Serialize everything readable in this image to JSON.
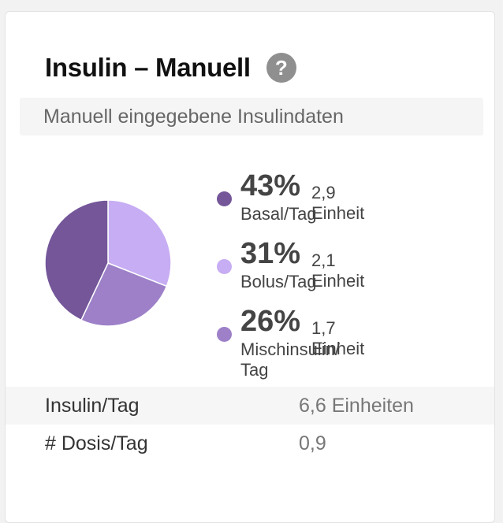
{
  "card": {
    "title": "Insulin – Manuell",
    "help_icon": "?",
    "subtitle": "Manuell eingegebene Insulindaten"
  },
  "chart_data": {
    "type": "pie",
    "slices": [
      {
        "percent": 43,
        "percent_label": "43%",
        "amount": "2,9 Einheit",
        "label": "Basal/Tag",
        "color": "#745699"
      },
      {
        "percent": 31,
        "percent_label": "31%",
        "amount": "2,1 Einheit",
        "label": "Bolus/Tag",
        "color": "#c7adf3"
      },
      {
        "percent": 26,
        "percent_label": "26%",
        "amount": "1,7 Einheit",
        "label": "Mischinsulin/ Tag",
        "color": "#9d80c8"
      }
    ]
  },
  "stats": [
    {
      "label": "Insulin/Tag",
      "value": "6,6 Einheiten"
    },
    {
      "label": "# Dosis/Tag",
      "value": "0,9"
    }
  ]
}
